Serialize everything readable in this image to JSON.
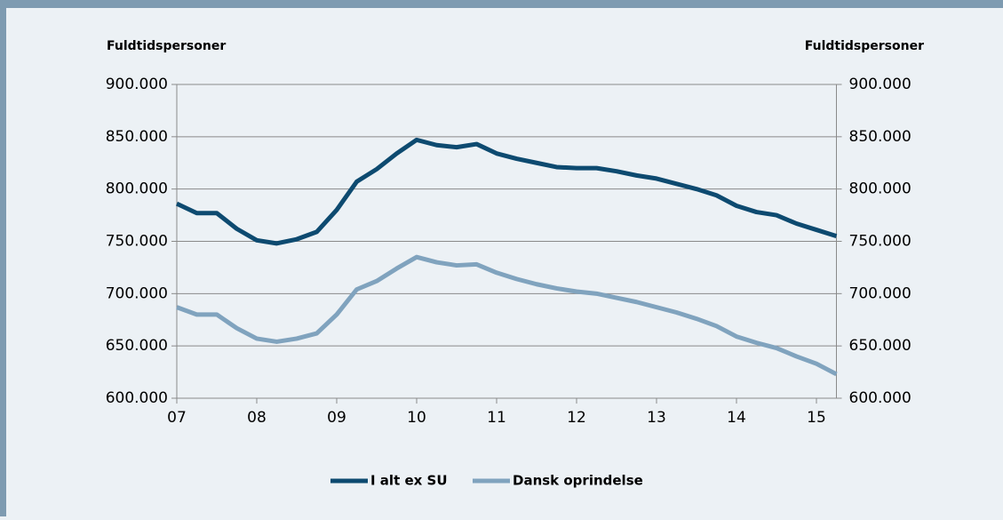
{
  "chart_data": {
    "type": "line",
    "y_label": "Fuldtidspersoner",
    "y2_label": "Fuldtidspersoner",
    "categories": [
      "07",
      null,
      null,
      null,
      "08",
      null,
      null,
      null,
      "09",
      null,
      null,
      null,
      "10",
      null,
      null,
      null,
      "11",
      null,
      null,
      null,
      "12",
      null,
      null,
      null,
      "13",
      null,
      null,
      null,
      "14",
      null,
      null,
      null,
      "15",
      null
    ],
    "series": [
      {
        "name": "I alt ex SU",
        "color": "#0d4a70",
        "values": [
          786000,
          777000,
          777000,
          762000,
          751000,
          748000,
          752000,
          759000,
          780000,
          807000,
          819000,
          834000,
          847000,
          842000,
          840000,
          843000,
          834000,
          829000,
          825000,
          821000,
          820000,
          820000,
          817000,
          813000,
          810000,
          805000,
          800000,
          794000,
          784000,
          778000,
          775000,
          767000,
          761000,
          755000
        ]
      },
      {
        "name": "Dansk oprindelse",
        "color": "#80a3be",
        "values": [
          687000,
          680000,
          680000,
          667000,
          657000,
          654000,
          657000,
          662000,
          680000,
          704000,
          712000,
          724000,
          735000,
          730000,
          727000,
          728000,
          720000,
          714000,
          709000,
          705000,
          702000,
          700000,
          696000,
          692000,
          687000,
          682000,
          676000,
          669000,
          659000,
          653000,
          648000,
          640000,
          633000,
          623000
        ]
      }
    ],
    "ylim": [
      600000,
      900000
    ],
    "yticks": [
      {
        "value": 600000,
        "label": "600.000"
      },
      {
        "value": 650000,
        "label": "650.000"
      },
      {
        "value": 700000,
        "label": "700.000"
      },
      {
        "value": 750000,
        "label": "750.000"
      },
      {
        "value": 800000,
        "label": "800.000"
      },
      {
        "value": 850000,
        "label": "850.000"
      },
      {
        "value": 900000,
        "label": "900.000"
      }
    ],
    "y2lim": [
      600000,
      900000
    ],
    "y2ticks": [
      {
        "value": 600000,
        "label": "600.000"
      },
      {
        "value": 650000,
        "label": "650.000"
      },
      {
        "value": 700000,
        "label": "700.000"
      },
      {
        "value": 750000,
        "label": "750.000"
      },
      {
        "value": 800000,
        "label": "800.000"
      },
      {
        "value": 850000,
        "label": "850.000"
      },
      {
        "value": 900000,
        "label": "900.000"
      }
    ],
    "grid": true,
    "legend": "bottom"
  }
}
